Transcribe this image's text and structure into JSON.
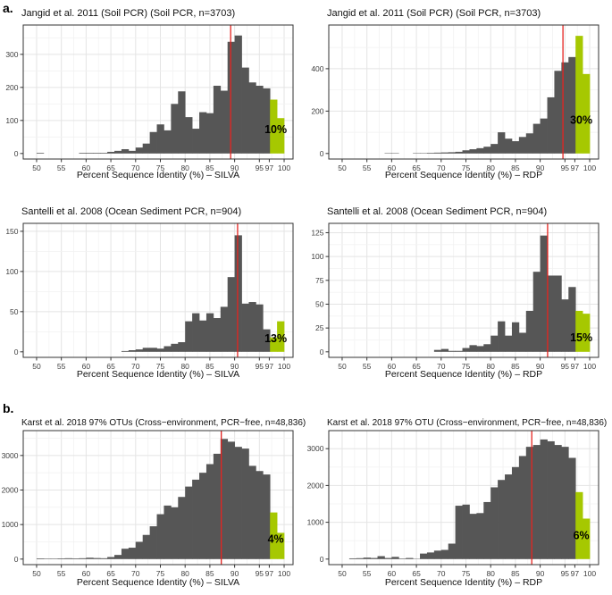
{
  "figure": {
    "section_labels": [
      "a.",
      "b."
    ],
    "colors": {
      "bar": "#565656",
      "highlight": "#a6c801",
      "red_line": "#e62420",
      "border": "#333333",
      "grid_major": "#e4e4e4",
      "grid_minor": "#f2f2f2"
    }
  },
  "chart_data": {
    "type": "bar",
    "note": "Six histograms of percent sequence identity; green bars = bins >= 97% identity, red vertical line = median",
    "bin_start": 50,
    "bin_width": 1.42857,
    "xticks": [
      50,
      55,
      60,
      65,
      70,
      75,
      80,
      85,
      90,
      95,
      97,
      100
    ],
    "panels": [
      {
        "title": "Jangid et al. 2011 (Soil PCR) (Soil PCR, n=3703)",
        "xlabel": "Percent Sequence Identity (%) – SILVA",
        "yticks": [
          0,
          100,
          200,
          300
        ],
        "ylim": 372,
        "values": [
          2,
          0,
          0,
          0,
          0,
          0,
          2,
          2,
          2,
          2,
          5,
          8,
          13,
          8,
          18,
          30,
          65,
          88,
          70,
          150,
          188,
          110,
          75,
          125,
          122,
          205,
          190,
          338,
          357,
          260,
          215,
          205,
          197,
          163,
          107
        ],
        "green_from_index": 33,
        "red_line_x": 89.2,
        "pct_label": "10%",
        "pct_label_y": 62
      },
      {
        "title": "Jangid et al. 2011 (Soil PCR) (Soil PCR, n=3703)",
        "xlabel": "Percent Sequence Identity (%) – RDP",
        "yticks": [
          0,
          200,
          400
        ],
        "ylim": 580,
        "values": [
          0,
          0,
          0,
          0,
          0,
          0,
          2,
          2,
          0,
          0,
          2,
          2,
          3,
          4,
          5,
          6,
          8,
          15,
          20,
          25,
          32,
          45,
          100,
          70,
          58,
          78,
          95,
          140,
          165,
          265,
          390,
          430,
          455,
          555,
          375
        ],
        "green_from_index": 33,
        "red_line_x": 94.6,
        "pct_label": "30%",
        "pct_label_y": 140
      },
      {
        "title": "Santelli et al. 2008 (Ocean Sediment PCR, n=904)",
        "xlabel": "Percent Sequence Identity (%) – SILVA",
        "yticks": [
          0,
          50,
          100,
          150
        ],
        "ylim": 153,
        "values": [
          0,
          0,
          0,
          0,
          0,
          0,
          0,
          0,
          0,
          0,
          0,
          0,
          1,
          2,
          3,
          5,
          5,
          4,
          7,
          10,
          12,
          38,
          48,
          39,
          48,
          42,
          56,
          93,
          145,
          60,
          62,
          59,
          28,
          18,
          38
        ],
        "green_from_index": 33,
        "red_line_x": 90.6,
        "pct_label": "13%",
        "pct_label_y": 12
      },
      {
        "title": "Santelli et al. 2008 (Ocean Sediment PCR, n=904)",
        "xlabel": "Percent Sequence Identity (%) – RDP",
        "yticks": [
          0,
          25,
          50,
          75,
          100,
          125
        ],
        "ylim": 129,
        "values": [
          0,
          0,
          0,
          0,
          0,
          0,
          0,
          0,
          0,
          0,
          0,
          0,
          0,
          2,
          3,
          1,
          1,
          4,
          7,
          6,
          8,
          17,
          32,
          17,
          31,
          20,
          43,
          84,
          122,
          80,
          80,
          55,
          68,
          43,
          40
        ],
        "green_from_index": 33,
        "red_line_x": 91.5,
        "pct_label": "15%",
        "pct_label_y": 11
      },
      {
        "title": "Karst et al. 2018 97% OTUs (Cross−environment, PCR−free, n=48,836)",
        "xlabel": "Percent Sequence Identity (%) – SILVA",
        "yticks": [
          0,
          1000,
          2000,
          3000
        ],
        "ylim": 3560,
        "values": [
          20,
          15,
          15,
          20,
          25,
          20,
          25,
          40,
          30,
          25,
          60,
          120,
          300,
          330,
          500,
          700,
          950,
          1300,
          1550,
          1500,
          1800,
          2100,
          2300,
          2500,
          2750,
          3050,
          3480,
          3400,
          3250,
          3200,
          2700,
          2550,
          2450,
          1350,
          760
        ],
        "green_from_index": 33,
        "red_line_x": 87.3,
        "pct_label": "4%",
        "pct_label_y": 480
      },
      {
        "title": "Karst et al. 2018 97% OTU (Cross−environment, PCR−free, n=48,836)",
        "xlabel": "Percent Sequence Identity (%) – RDP",
        "yticks": [
          0,
          1000,
          2000,
          3000
        ],
        "ylim": 3340,
        "values": [
          0,
          20,
          25,
          40,
          30,
          80,
          30,
          60,
          15,
          30,
          10,
          150,
          180,
          230,
          250,
          420,
          1450,
          1480,
          1230,
          1250,
          1550,
          1950,
          2150,
          2300,
          2500,
          2800,
          3050,
          3100,
          3250,
          3200,
          3100,
          3050,
          2750,
          1820,
          1100
        ],
        "green_from_index": 33,
        "red_line_x": 88.3,
        "pct_label": "6%",
        "pct_label_y": 540
      }
    ]
  }
}
